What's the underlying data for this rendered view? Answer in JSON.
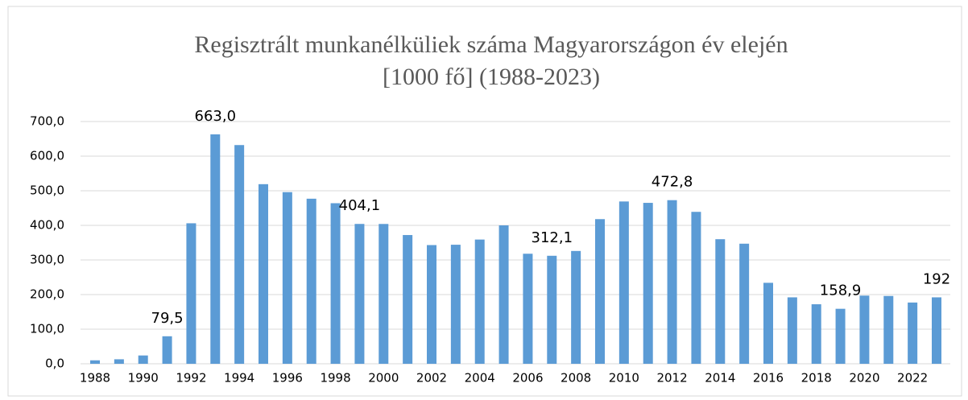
{
  "chart_data": {
    "type": "bar",
    "title": [
      "Regisztrált munkanélküliek száma Magyarországon év elején",
      "[1000 fő] (1988-2023)"
    ],
    "categories": [
      "1988",
      null,
      "1990",
      null,
      "1992",
      null,
      "1994",
      null,
      "1996",
      null,
      "1998",
      null,
      "2000",
      null,
      "2002",
      null,
      "2004",
      null,
      "2006",
      null,
      "2008",
      null,
      "2010",
      null,
      "2012",
      null,
      "2014",
      null,
      "2016",
      null,
      "2018",
      null,
      "2020",
      null,
      "2022",
      null
    ],
    "values": [
      10,
      13,
      24,
      79.5,
      406,
      663.0,
      632,
      519,
      496,
      477,
      464,
      404.1,
      404,
      372,
      343,
      344,
      359,
      400,
      318,
      312.1,
      326,
      418,
      469,
      465,
      472.8,
      439,
      360,
      347,
      234,
      192,
      172,
      158.9,
      197,
      196,
      177,
      192
    ],
    "value_labels": [
      null,
      null,
      null,
      "79,5",
      null,
      "663,0",
      null,
      null,
      null,
      null,
      null,
      "404,1",
      null,
      null,
      null,
      null,
      null,
      null,
      null,
      "312,1",
      null,
      null,
      null,
      null,
      "472,8",
      null,
      null,
      null,
      null,
      null,
      null,
      "158,9",
      null,
      null,
      null,
      "192"
    ],
    "color": "#5b9bd5",
    "ylim": [
      0,
      700
    ],
    "yticks": [
      {
        "value": 0,
        "label": "0,0"
      },
      {
        "value": 100,
        "label": "100,0"
      },
      {
        "value": 200,
        "label": "200,0"
      },
      {
        "value": 300,
        "label": "300,0"
      },
      {
        "value": 400,
        "label": "400,0"
      },
      {
        "value": 500,
        "label": "500,0"
      },
      {
        "value": 600,
        "label": "600,0"
      },
      {
        "value": 700,
        "label": "700,0"
      }
    ],
    "grid": true
  }
}
